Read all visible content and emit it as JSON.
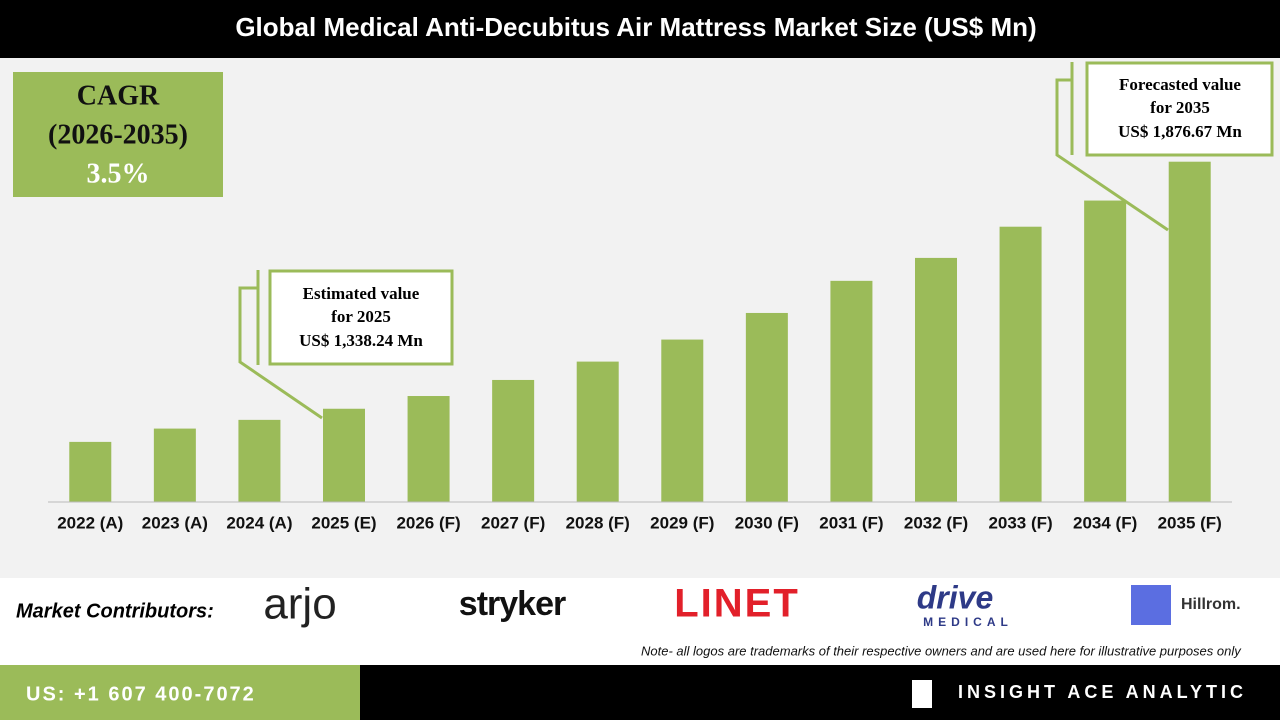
{
  "chart_data": {
    "type": "bar",
    "title": "Global Medical Anti-Decubitus Air Mattress Market Size (US$ Mn)",
    "categories": [
      "2022 (A)",
      "2023 (A)",
      "2024 (A)",
      "2025 (E)",
      "2026 (F)",
      "2027 (F)",
      "2028 (F)",
      "2029 (F)",
      "2030 (F)",
      "2031 (F)",
      "2032 (F)",
      "2033 (F)",
      "2034 (F)",
      "2035 (F)"
    ],
    "values": [
      1266,
      1295,
      1314,
      1338.24,
      1366,
      1401,
      1441,
      1489,
      1547,
      1617,
      1667,
      1735,
      1792,
      1876.67
    ],
    "value_labels": [
      null,
      null,
      null,
      "US$ 1,338.24 Mn",
      null,
      null,
      null,
      null,
      null,
      null,
      null,
      null,
      null,
      "US$ 1,876.67 Mn"
    ],
    "color": "#9bbb59",
    "ylim": [
      1135,
      1900
    ],
    "annotations": [
      [
        "Estimated value",
        "for 2025"
      ],
      [
        "Forecasted value",
        "for 2035"
      ]
    ],
    "cagr": {
      "label": "CAGR",
      "period": "(2026-2035)",
      "value": "3.5%"
    }
  },
  "contributors": {
    "label": "Market Contributors:",
    "logos": [
      "arjo",
      "stryker",
      "LINET",
      "drive",
      "MEDICAL",
      "Hillrom."
    ],
    "note": "Note- all logos are trademarks of their respective owners and are used here for illustrative purposes only"
  },
  "footer": {
    "phone": "US: +1 607 400-7072",
    "brand": "INSIGHT ACE ANALYTIC"
  }
}
